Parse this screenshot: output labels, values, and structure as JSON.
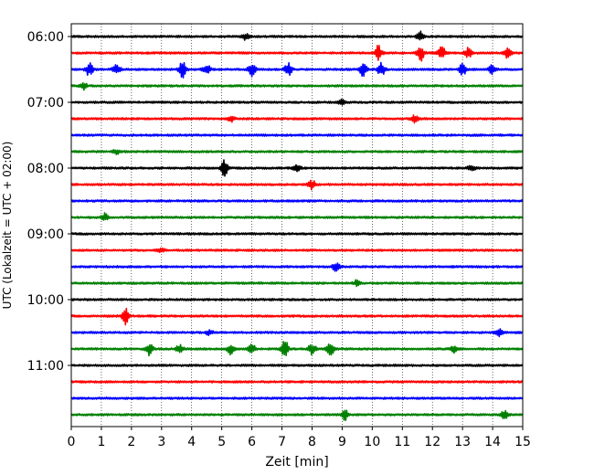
{
  "chart_data": {
    "type": "line",
    "title": "",
    "xlabel": "Zeit  [min]",
    "ylabel": "UTC (Lokalzeit = UTC + 02:00)",
    "xlim": [
      0,
      15
    ],
    "x_ticks": [
      "0",
      "1",
      "2",
      "3",
      "4",
      "5",
      "6",
      "7",
      "8",
      "9",
      "10",
      "11",
      "12",
      "13",
      "14",
      "15"
    ],
    "y_tick_labels": [
      "06:00",
      "07:00",
      "08:00",
      "09:00",
      "10:00",
      "11:00"
    ],
    "grid": {
      "x": true,
      "y": false,
      "style": "dotted"
    },
    "row_colors": [
      "#000000",
      "#ff0000",
      "#0000ff",
      "#008000"
    ],
    "traces": [
      {
        "start": "06:00",
        "events": [
          {
            "t": 5.8,
            "amp": 0.25
          },
          {
            "t": 11.6,
            "amp": 0.35
          }
        ]
      },
      {
        "start": "06:15",
        "events": [
          {
            "t": 10.2,
            "amp": 0.5
          },
          {
            "t": 11.6,
            "amp": 0.6
          },
          {
            "t": 12.3,
            "amp": 0.5
          },
          {
            "t": 13.2,
            "amp": 0.35
          },
          {
            "t": 14.5,
            "amp": 0.35
          }
        ]
      },
      {
        "start": "06:30",
        "events": [
          {
            "t": 0.6,
            "amp": 0.45
          },
          {
            "t": 1.5,
            "amp": 0.4
          },
          {
            "t": 3.7,
            "amp": 0.55
          },
          {
            "t": 4.5,
            "amp": 0.4
          },
          {
            "t": 6.0,
            "amp": 0.45
          },
          {
            "t": 7.2,
            "amp": 0.5
          },
          {
            "t": 9.7,
            "amp": 0.55
          },
          {
            "t": 10.3,
            "amp": 0.45
          },
          {
            "t": 13.0,
            "amp": 0.4
          },
          {
            "t": 14.0,
            "amp": 0.35
          }
        ]
      },
      {
        "start": "06:45",
        "events": [
          {
            "t": 0.4,
            "amp": 0.25
          }
        ]
      },
      {
        "start": "07:00",
        "events": [
          {
            "t": 9.0,
            "amp": 0.15
          }
        ]
      },
      {
        "start": "07:15",
        "events": [
          {
            "t": 5.3,
            "amp": 0.2
          },
          {
            "t": 11.4,
            "amp": 0.25
          }
        ]
      },
      {
        "start": "07:30",
        "events": []
      },
      {
        "start": "07:45",
        "events": [
          {
            "t": 1.5,
            "amp": 0.15
          }
        ]
      },
      {
        "start": "08:00",
        "events": [
          {
            "t": 5.1,
            "amp": 0.55
          },
          {
            "t": 7.5,
            "amp": 0.3
          },
          {
            "t": 13.3,
            "amp": 0.2
          }
        ]
      },
      {
        "start": "08:15",
        "events": [
          {
            "t": 8.0,
            "amp": 0.3
          }
        ]
      },
      {
        "start": "08:30",
        "events": []
      },
      {
        "start": "08:45",
        "events": [
          {
            "t": 1.1,
            "amp": 0.25
          }
        ]
      },
      {
        "start": "09:00",
        "events": []
      },
      {
        "start": "09:15",
        "events": [
          {
            "t": 3.0,
            "amp": 0.15
          }
        ]
      },
      {
        "start": "09:30",
        "events": [
          {
            "t": 8.8,
            "amp": 0.3
          }
        ]
      },
      {
        "start": "09:45",
        "events": [
          {
            "t": 9.5,
            "amp": 0.2
          }
        ]
      },
      {
        "start": "10:00",
        "events": []
      },
      {
        "start": "10:15",
        "events": [
          {
            "t": 1.8,
            "amp": 0.55
          }
        ]
      },
      {
        "start": "10:30",
        "events": [
          {
            "t": 4.6,
            "amp": 0.2
          },
          {
            "t": 14.2,
            "amp": 0.25
          }
        ]
      },
      {
        "start": "10:45",
        "events": [
          {
            "t": 2.6,
            "amp": 0.45
          },
          {
            "t": 3.6,
            "amp": 0.3
          },
          {
            "t": 5.3,
            "amp": 0.35
          },
          {
            "t": 6.0,
            "amp": 0.3
          },
          {
            "t": 7.1,
            "amp": 0.55
          },
          {
            "t": 8.0,
            "amp": 0.4
          },
          {
            "t": 8.6,
            "amp": 0.5
          },
          {
            "t": 12.7,
            "amp": 0.25
          }
        ]
      },
      {
        "start": "11:00",
        "events": []
      },
      {
        "start": "11:15",
        "events": []
      },
      {
        "start": "11:30",
        "events": []
      },
      {
        "start": "11:45",
        "events": [
          {
            "t": 9.1,
            "amp": 0.35
          },
          {
            "t": 14.4,
            "amp": 0.25
          }
        ]
      }
    ]
  }
}
